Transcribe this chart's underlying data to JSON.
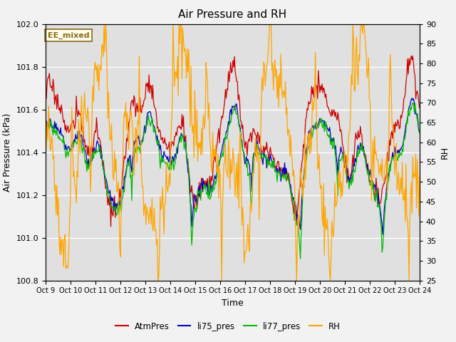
{
  "title": "Air Pressure and RH",
  "xlabel": "Time",
  "ylabel_left": "Air Pressure (kPa)",
  "ylabel_right": "RH",
  "ylim_left": [
    100.8,
    102.0
  ],
  "ylim_right": [
    25,
    90
  ],
  "yticks_left": [
    100.8,
    101.0,
    101.2,
    101.4,
    101.6,
    101.8,
    102.0
  ],
  "yticks_right": [
    25,
    30,
    35,
    40,
    45,
    50,
    55,
    60,
    65,
    70,
    75,
    80,
    85,
    90
  ],
  "xtick_labels": [
    "Oct 9",
    "Oct 10",
    "Oct 11",
    "Oct 12",
    "Oct 13",
    "Oct 14",
    "Oct 15",
    "Oct 16",
    "Oct 17",
    "Oct 18",
    "Oct 19",
    "Oct 20",
    "Oct 21",
    "Oct 22",
    "Oct 23",
    "Oct 24"
  ],
  "annotation_text": "EE_mixed",
  "annotation_color": "#8B6914",
  "annotation_bg": "#FFFFF0",
  "colors": {
    "AtmPres": "#CC0000",
    "li75_pres": "#0000BB",
    "li77_pres": "#00BB00",
    "RH": "#FFA500"
  },
  "background_color": "#E0E0E0",
  "grid_color": "#FFFFFF",
  "fig_bg": "#F2F2F2",
  "n_points": 500
}
